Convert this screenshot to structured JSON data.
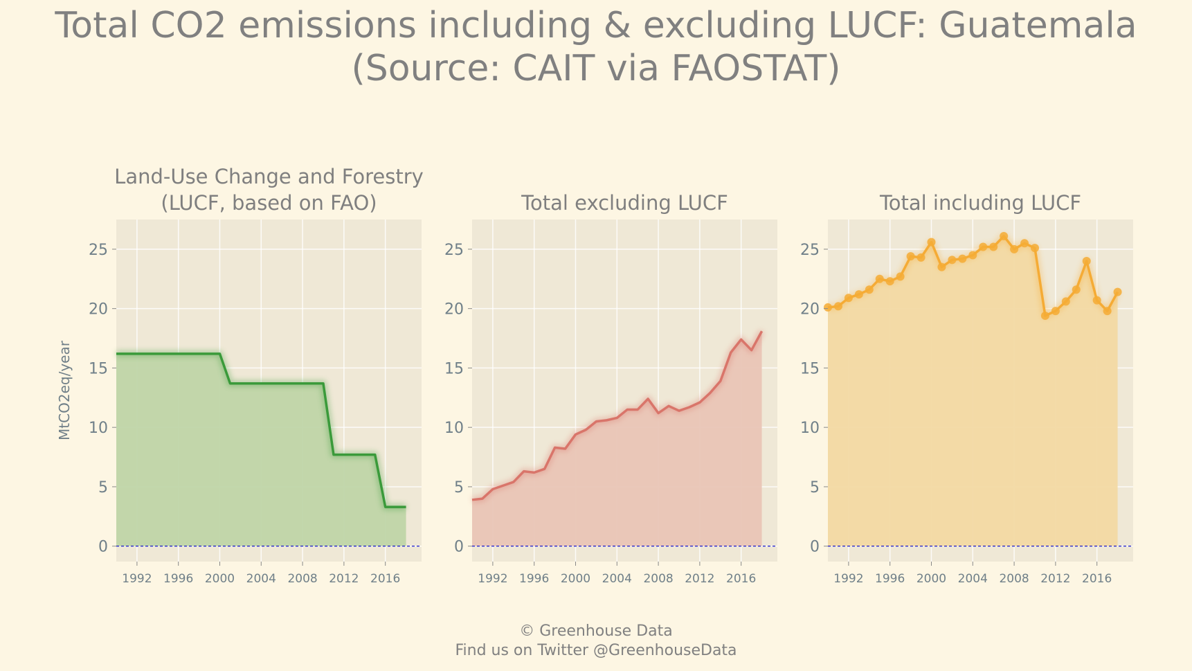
{
  "title_line1": "Total CO2 emissions including & excluding LUCF: Guatemala",
  "title_line2": "(Source: CAIT via FAOSTAT)",
  "footer": {
    "line1": "© Greenhouse Data",
    "line2": "Find us on Twitter @GreenhouseData"
  },
  "colors": {
    "background": "#fdf6e3",
    "panel": "#efe8d6",
    "baseline": "#0000cc"
  },
  "chart_data": [
    {
      "type": "area",
      "title": "Land-Use Change and Forestry\n(LUCF, based on FAO)",
      "ylabel": "MtCO2eq/year",
      "color": "#3a9a3a",
      "fill": "#bfd5a8",
      "markers": false,
      "xlim": [
        1990,
        2019.5
      ],
      "ylim": [
        -1.3,
        27.5
      ],
      "xticks": [
        1992,
        1996,
        2000,
        2004,
        2008,
        2012,
        2016
      ],
      "yticks": [
        0,
        5,
        10,
        15,
        20,
        25
      ],
      "x": [
        1990,
        1991,
        1992,
        1993,
        1994,
        1995,
        1996,
        1997,
        1998,
        1999,
        2000,
        2001,
        2002,
        2003,
        2004,
        2005,
        2006,
        2007,
        2008,
        2009,
        2010,
        2011,
        2012,
        2013,
        2014,
        2015,
        2016,
        2017,
        2018
      ],
      "y": [
        16.2,
        16.2,
        16.2,
        16.2,
        16.2,
        16.2,
        16.2,
        16.2,
        16.2,
        16.2,
        16.2,
        13.7,
        13.7,
        13.7,
        13.7,
        13.7,
        13.7,
        13.7,
        13.7,
        13.7,
        13.7,
        7.7,
        7.7,
        7.7,
        7.7,
        7.7,
        3.3,
        3.3,
        3.3
      ]
    },
    {
      "type": "area",
      "title": "Total excluding LUCF",
      "ylabel": "",
      "color": "#d9756a",
      "fill": "#e9c5b6",
      "markers": false,
      "xlim": [
        1990,
        2019.5
      ],
      "ylim": [
        -1.3,
        27.5
      ],
      "xticks": [
        1992,
        1996,
        2000,
        2004,
        2008,
        2012,
        2016
      ],
      "yticks": [
        0,
        5,
        10,
        15,
        20,
        25
      ],
      "x": [
        1990,
        1991,
        1992,
        1993,
        1994,
        1995,
        1996,
        1997,
        1998,
        1999,
        2000,
        2001,
        2002,
        2003,
        2004,
        2005,
        2006,
        2007,
        2008,
        2009,
        2010,
        2011,
        2012,
        2013,
        2014,
        2015,
        2016,
        2017,
        2018
      ],
      "y": [
        3.9,
        4.0,
        4.8,
        5.1,
        5.4,
        6.3,
        6.2,
        6.5,
        8.3,
        8.2,
        9.4,
        9.8,
        10.5,
        10.6,
        10.8,
        11.5,
        11.5,
        12.4,
        11.2,
        11.8,
        11.4,
        11.7,
        12.1,
        12.9,
        13.9,
        16.3,
        17.4,
        16.5,
        18.1
      ]
    },
    {
      "type": "area",
      "title": "Total including LUCF",
      "ylabel": "",
      "color": "#f5ab35",
      "fill": "#f2d9a3",
      "markers": true,
      "xlim": [
        1990,
        2019.5
      ],
      "ylim": [
        -1.3,
        27.5
      ],
      "xticks": [
        1992,
        1996,
        2000,
        2004,
        2008,
        2012,
        2016
      ],
      "yticks": [
        0,
        5,
        10,
        15,
        20,
        25
      ],
      "x": [
        1990,
        1991,
        1992,
        1993,
        1994,
        1995,
        1996,
        1997,
        1998,
        1999,
        2000,
        2001,
        2002,
        2003,
        2004,
        2005,
        2006,
        2007,
        2008,
        2009,
        2010,
        2011,
        2012,
        2013,
        2014,
        2015,
        2016,
        2017,
        2018
      ],
      "y": [
        20.1,
        20.2,
        20.9,
        21.2,
        21.6,
        22.5,
        22.3,
        22.7,
        24.4,
        24.3,
        25.6,
        23.5,
        24.1,
        24.2,
        24.5,
        25.2,
        25.2,
        26.1,
        25.0,
        25.5,
        25.1,
        19.4,
        19.8,
        20.6,
        21.6,
        24.0,
        20.7,
        19.8,
        21.4
      ]
    }
  ]
}
